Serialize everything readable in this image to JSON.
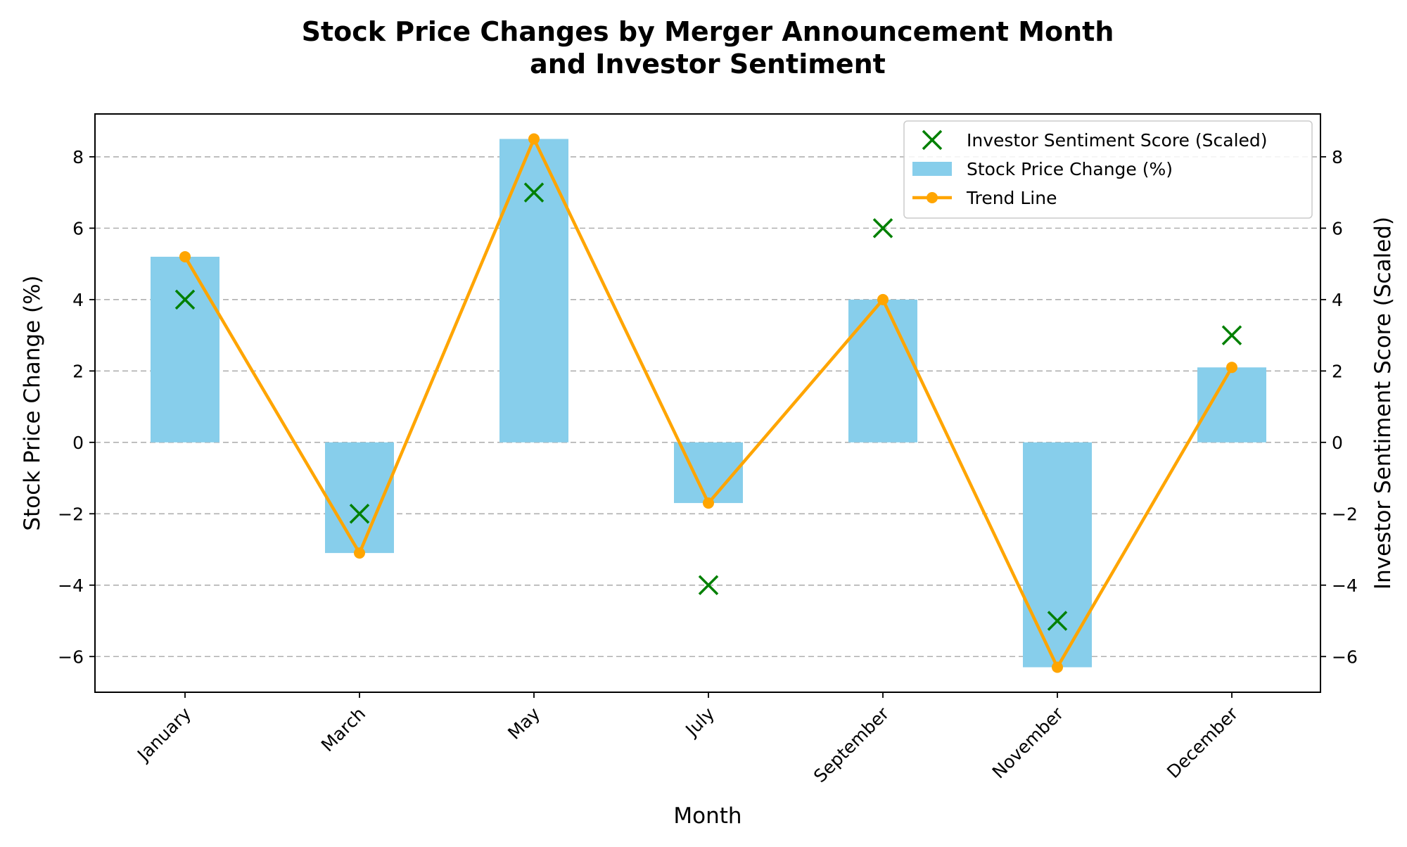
{
  "chart_data": {
    "type": "bar",
    "title_lines": [
      "Stock Price Changes by Merger Announcement Month",
      "and Investor Sentiment"
    ],
    "xlabel": "Month",
    "ylabel_left": "Stock Price Change (%)",
    "ylabel_right": "Investor Sentiment Score (Scaled)",
    "categories": [
      "January",
      "March",
      "May",
      "July",
      "September",
      "November",
      "December"
    ],
    "ylim": [
      -7,
      9.2
    ],
    "yticks": [
      -6,
      -4,
      -2,
      0,
      2,
      4,
      6,
      8
    ],
    "ytick_labels": [
      "−6",
      "−4",
      "−2",
      "0",
      "2",
      "4",
      "6",
      "8"
    ],
    "grid": "horizontal-dashed",
    "legend_position": "top-right",
    "series": [
      {
        "name": "Investor Sentiment Score (Scaled)",
        "kind": "scatter",
        "marker": "x",
        "color": "#008000",
        "values": [
          4,
          -2,
          7,
          -4,
          6,
          -5,
          3
        ]
      },
      {
        "name": "Stock Price Change (%)",
        "kind": "bar",
        "color": "#87CEEB",
        "values": [
          5.2,
          -3.1,
          8.5,
          -1.7,
          4.0,
          -6.3,
          2.1
        ]
      },
      {
        "name": "Trend Line",
        "kind": "line",
        "color": "#FFA500",
        "values": [
          5.2,
          -3.1,
          8.5,
          -1.7,
          4.0,
          -6.3,
          2.1
        ]
      }
    ]
  }
}
